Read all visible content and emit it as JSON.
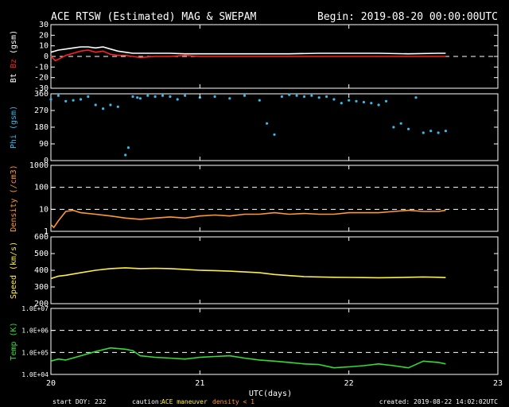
{
  "title": "ACE RTSW (Estimated) MAG & SWEPAM",
  "begin": "Begin: 2019-08-20 00:00:00UTC",
  "footer": {
    "start_doy": "start DOY: 232",
    "caution": "caution:",
    "maneuver": "ACE maneuver",
    "density_note": "density < 1",
    "created": "created: 2019-08-22 14:02:02UTC"
  },
  "colors": {
    "bt": "#ffffff",
    "bz": "#ff2020",
    "phi": "#33bbee",
    "density": "#ff9933",
    "speed": "#ffee44",
    "temp": "#33dd33",
    "maneuver": "#ffee44",
    "density_note": "#ff9933"
  },
  "chart_data": {
    "type": "line",
    "x_axis": {
      "label": "UTC(days)",
      "range": [
        20,
        23
      ],
      "ticks": [
        "20",
        "21",
        "22",
        "23"
      ]
    },
    "panels": [
      {
        "id": "mag",
        "label_parts": [
          {
            "text": "Bt",
            "color": "#ffffff"
          },
          {
            "text": " ",
            "color": "#ffffff"
          },
          {
            "text": "Bz",
            "color": "#ff2020"
          },
          {
            "text": " (gsm)",
            "color": "#ffffff"
          }
        ],
        "scale": "linear",
        "ylim": [
          -30,
          30
        ],
        "ticks": [
          {
            "v": 30,
            "t": "30"
          },
          {
            "v": 20,
            "t": "20"
          },
          {
            "v": 10,
            "t": "10"
          },
          {
            "v": 0,
            "t": "0"
          },
          {
            "v": -10,
            "t": "-10"
          },
          {
            "v": -20,
            "t": "-20"
          },
          {
            "v": -30,
            "t": "-30"
          }
        ],
        "ref_lines": [
          0
        ],
        "series": [
          {
            "name": "Bt",
            "color": "#ffffff",
            "style": "line",
            "x": [
              20.0,
              20.05,
              20.1,
              20.15,
              20.2,
              20.25,
              20.3,
              20.35,
              20.4,
              20.45,
              20.5,
              20.55,
              20.6,
              20.7,
              20.8,
              20.9,
              21.0,
              21.2,
              21.4,
              21.6,
              21.8,
              22.0,
              22.2,
              22.4,
              22.6,
              22.65
            ],
            "y": [
              4,
              6,
              7,
              8,
              9,
              9,
              8,
              9,
              7,
              5,
              4,
              3,
              3,
              3,
              3,
              2.5,
              2.5,
              2.5,
              2.5,
              2.5,
              3,
              3,
              3,
              2.5,
              3,
              3
            ]
          },
          {
            "name": "Bz",
            "color": "#ff2020",
            "style": "line",
            "x": [
              20.0,
              20.03,
              20.06,
              20.1,
              20.15,
              20.2,
              20.25,
              20.3,
              20.35,
              20.4,
              20.45,
              20.5,
              20.55,
              20.6,
              20.7,
              20.8,
              20.9,
              21.0,
              21.2,
              21.4,
              21.6,
              21.8,
              22.0,
              22.2,
              22.4,
              22.6,
              22.65
            ],
            "y": [
              0,
              -4,
              -2,
              1,
              3,
              5,
              6,
              4,
              5,
              2,
              1,
              1,
              0,
              -1,
              0,
              0,
              1,
              0,
              0,
              0,
              0,
              0,
              0,
              0,
              0,
              0,
              0
            ]
          }
        ]
      },
      {
        "id": "phi",
        "label_parts": [
          {
            "text": "Phi (gsm)",
            "color": "#33bbee"
          }
        ],
        "scale": "linear",
        "ylim": [
          0,
          360
        ],
        "ticks": [
          {
            "v": 360,
            "t": "360"
          },
          {
            "v": 270,
            "t": "270"
          },
          {
            "v": 180,
            "t": "180"
          },
          {
            "v": 90,
            "t": "90"
          },
          {
            "v": 0,
            "t": "0"
          }
        ],
        "ref_lines": [],
        "series": [
          {
            "name": "Phi",
            "color": "#33bbee",
            "style": "dots",
            "x": [
              20.0,
              20.05,
              20.1,
              20.15,
              20.2,
              20.25,
              20.3,
              20.35,
              20.4,
              20.45,
              20.5,
              20.52,
              20.55,
              20.58,
              20.6,
              20.65,
              20.7,
              20.75,
              20.8,
              20.85,
              20.9,
              21.0,
              21.1,
              21.2,
              21.3,
              21.4,
              21.45,
              21.5,
              21.55,
              21.6,
              21.65,
              21.7,
              21.75,
              21.8,
              21.85,
              21.9,
              21.95,
              22.0,
              22.05,
              22.1,
              22.15,
              22.2,
              22.25,
              22.3,
              22.35,
              22.4,
              22.45,
              22.5,
              22.55,
              22.6,
              22.65
            ],
            "y": [
              330,
              350,
              320,
              325,
              330,
              345,
              300,
              280,
              300,
              290,
              30,
              70,
              345,
              340,
              335,
              350,
              345,
              350,
              345,
              330,
              350,
              340,
              345,
              335,
              350,
              325,
              200,
              140,
              345,
              355,
              350,
              345,
              350,
              340,
              345,
              330,
              310,
              325,
              320,
              315,
              310,
              300,
              320,
              180,
              200,
              170,
              340,
              150,
              160,
              150,
              160
            ]
          }
        ]
      },
      {
        "id": "density",
        "label_parts": [
          {
            "text": "Density (/cm3)",
            "color": "#ff9933"
          }
        ],
        "scale": "log",
        "ylim": [
          1,
          1000
        ],
        "ticks": [
          {
            "v": 1000,
            "t": "1000"
          },
          {
            "v": 100,
            "t": "100"
          },
          {
            "v": 10,
            "t": "10"
          },
          {
            "v": 1,
            "t": "1"
          }
        ],
        "ref_lines": [
          100,
          10
        ],
        "series": [
          {
            "name": "Density",
            "color": "#ff9933",
            "style": "line",
            "x": [
              20.0,
              20.02,
              20.05,
              20.1,
              20.15,
              20.2,
              20.3,
              20.4,
              20.5,
              20.6,
              20.7,
              20.8,
              20.9,
              21.0,
              21.1,
              21.2,
              21.3,
              21.4,
              21.5,
              21.6,
              21.7,
              21.8,
              21.9,
              22.0,
              22.1,
              22.2,
              22.3,
              22.4,
              22.5,
              22.6,
              22.65
            ],
            "y": [
              2,
              1.5,
              3,
              8,
              9,
              7,
              6,
              5,
              4,
              3.5,
              4,
              4.5,
              4,
              5,
              5.5,
              5,
              6,
              6,
              7,
              6,
              6.5,
              6,
              6,
              7,
              7,
              7,
              8,
              9,
              8,
              8,
              9
            ]
          }
        ]
      },
      {
        "id": "speed",
        "label_parts": [
          {
            "text": "Speed (km/s)",
            "color": "#ffee44"
          }
        ],
        "scale": "linear",
        "ylim": [
          200,
          600
        ],
        "ticks": [
          {
            "v": 600,
            "t": "600"
          },
          {
            "v": 500,
            "t": "500"
          },
          {
            "v": 400,
            "t": "400"
          },
          {
            "v": 300,
            "t": "300"
          },
          {
            "v": 200,
            "t": "200"
          }
        ],
        "ref_lines": [],
        "series": [
          {
            "name": "Speed",
            "color": "#ffee44",
            "style": "line",
            "x": [
              20.0,
              20.05,
              20.1,
              20.2,
              20.3,
              20.4,
              20.5,
              20.6,
              20.7,
              20.8,
              20.9,
              21.0,
              21.1,
              21.2,
              21.3,
              21.4,
              21.5,
              21.6,
              21.7,
              21.8,
              21.9,
              22.0,
              22.1,
              22.2,
              22.3,
              22.4,
              22.5,
              22.6,
              22.65
            ],
            "y": [
              350,
              365,
              370,
              385,
              400,
              410,
              415,
              410,
              412,
              410,
              405,
              400,
              398,
              395,
              390,
              385,
              375,
              368,
              362,
              360,
              358,
              357,
              356,
              355,
              356,
              358,
              360,
              358,
              356
            ]
          }
        ]
      },
      {
        "id": "temp",
        "label_parts": [
          {
            "text": "Temp (K)",
            "color": "#33dd33"
          }
        ],
        "scale": "log",
        "ylim": [
          10000,
          10000000
        ],
        "ticks": [
          {
            "v": 10000000,
            "t": "1.0E+07"
          },
          {
            "v": 1000000,
            "t": "1.0E+06"
          },
          {
            "v": 100000,
            "t": "1.0E+05"
          },
          {
            "v": 10000,
            "t": "1.0E+04"
          }
        ],
        "ref_lines": [
          1000000,
          100000
        ],
        "series": [
          {
            "name": "Temp",
            "color": "#33dd33",
            "style": "line",
            "x": [
              20.0,
              20.05,
              20.1,
              20.2,
              20.3,
              20.4,
              20.5,
              20.55,
              20.6,
              20.7,
              20.8,
              20.9,
              21.0,
              21.1,
              21.2,
              21.3,
              21.4,
              21.5,
              21.6,
              21.7,
              21.8,
              21.9,
              22.0,
              22.1,
              22.2,
              22.3,
              22.4,
              22.5,
              22.6,
              22.65
            ],
            "y": [
              40000,
              50000,
              45000,
              70000,
              110000,
              160000,
              140000,
              120000,
              70000,
              60000,
              55000,
              50000,
              60000,
              65000,
              70000,
              55000,
              45000,
              40000,
              35000,
              30000,
              28000,
              20000,
              22000,
              25000,
              30000,
              25000,
              20000,
              40000,
              35000,
              30000
            ]
          }
        ]
      }
    ]
  }
}
